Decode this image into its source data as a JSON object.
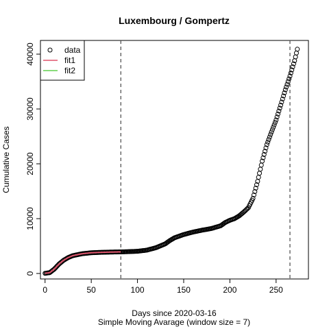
{
  "chart_data": {
    "type": "scatter",
    "title": "Luxembourg / Gompertz",
    "xlabel": "Days since 2020-03-16",
    "xlabel2": "Simple Moving Avarage (window size = 7)",
    "ylabel": "Cumulative Cases",
    "xlim": [
      -5,
      285
    ],
    "ylim": [
      -1000,
      42500
    ],
    "xticks": [
      0,
      50,
      100,
      150,
      200,
      250
    ],
    "yticks": [
      0,
      10000,
      20000,
      30000,
      40000
    ],
    "vlines": [
      82,
      265
    ],
    "legend": {
      "position": "top-left",
      "entries": [
        "data",
        "fit1",
        "fit2"
      ]
    },
    "colors": {
      "data": "#000000",
      "fit1": "#DF536B",
      "fit2": "#61D04F",
      "vline": "#555555"
    },
    "series": [
      {
        "name": "data",
        "anchors": [
          [
            0,
            30
          ],
          [
            5,
            150
          ],
          [
            10,
            800
          ],
          [
            15,
            1700
          ],
          [
            20,
            2400
          ],
          [
            25,
            2900
          ],
          [
            30,
            3250
          ],
          [
            40,
            3600
          ],
          [
            50,
            3780
          ],
          [
            60,
            3850
          ],
          [
            70,
            3900
          ],
          [
            80,
            3930
          ],
          [
            90,
            3980
          ],
          [
            100,
            4050
          ],
          [
            110,
            4250
          ],
          [
            120,
            4700
          ],
          [
            130,
            5400
          ],
          [
            135,
            6000
          ],
          [
            140,
            6500
          ],
          [
            150,
            7100
          ],
          [
            160,
            7550
          ],
          [
            170,
            7900
          ],
          [
            180,
            8200
          ],
          [
            190,
            8700
          ],
          [
            195,
            9300
          ],
          [
            200,
            9700
          ],
          [
            205,
            10000
          ],
          [
            210,
            10500
          ],
          [
            215,
            11200
          ],
          [
            220,
            12000
          ],
          [
            225,
            13700
          ],
          [
            230,
            16800
          ],
          [
            235,
            20500
          ],
          [
            240,
            23500
          ],
          [
            245,
            25800
          ],
          [
            250,
            28000
          ],
          [
            255,
            30700
          ],
          [
            260,
            33500
          ],
          [
            265,
            36000
          ],
          [
            270,
            38800
          ],
          [
            273,
            40900
          ]
        ]
      },
      {
        "name": "fit1",
        "anchors": [
          [
            0,
            30
          ],
          [
            5,
            150
          ],
          [
            10,
            800
          ],
          [
            15,
            1700
          ],
          [
            20,
            2400
          ],
          [
            25,
            2900
          ],
          [
            30,
            3250
          ],
          [
            40,
            3600
          ],
          [
            50,
            3780
          ],
          [
            60,
            3850
          ],
          [
            70,
            3900
          ],
          [
            82,
            3940
          ]
        ]
      }
    ]
  }
}
